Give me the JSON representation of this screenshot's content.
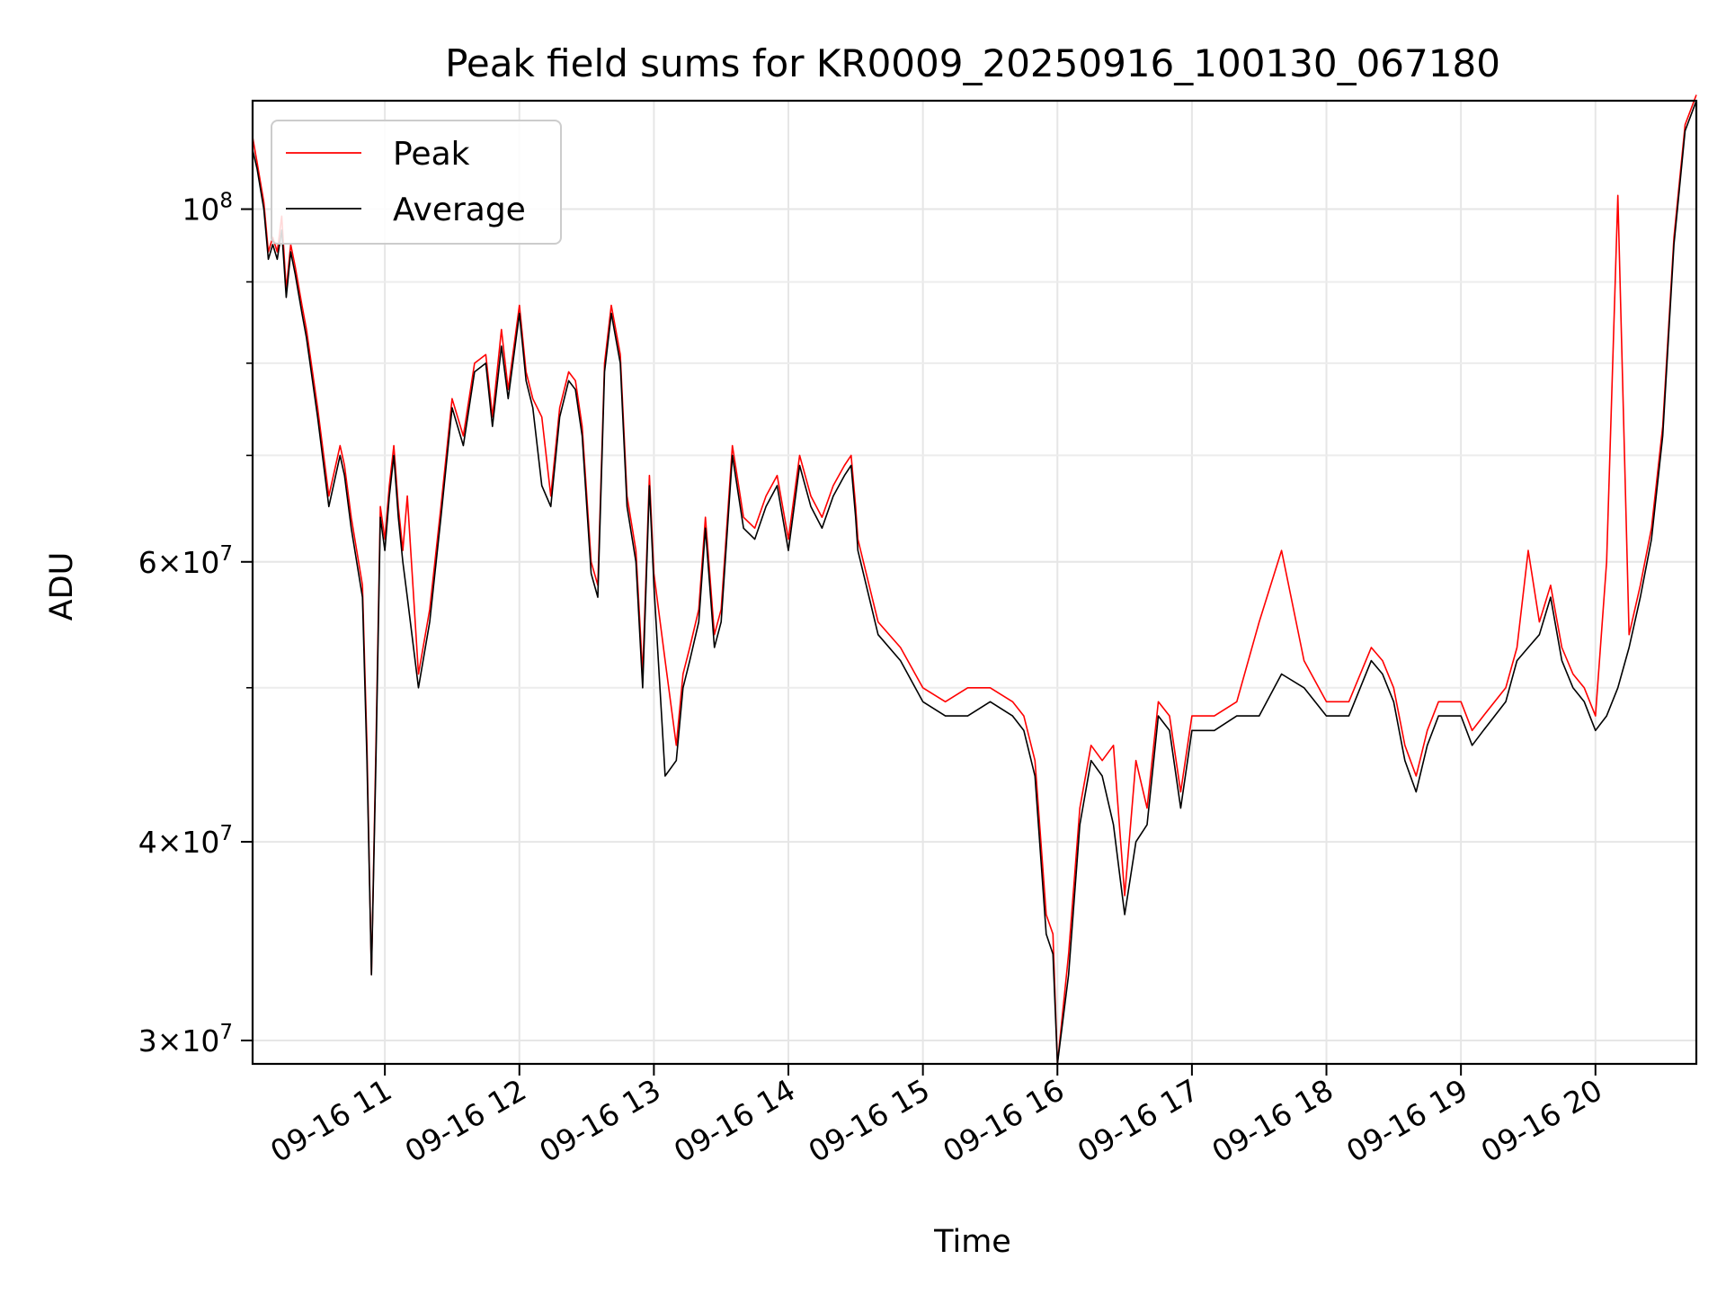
{
  "chart_data": {
    "type": "line",
    "title": "Peak field sums for KR0009_20250916_100130_067180",
    "xlabel": "Time",
    "ylabel": "ADU",
    "xscale": "time",
    "yscale": "log",
    "xlim": [
      "2025-09-16 10:01",
      "2025-09-16 20:45"
    ],
    "ylim": [
      29000000,
      117000000
    ],
    "grid": true,
    "legend_position": "top-left",
    "x_ticks": [
      "09-16 11",
      "09-16 12",
      "09-16 13",
      "09-16 14",
      "09-16 15",
      "09-16 16",
      "09-16 17",
      "09-16 18",
      "09-16 19",
      "09-16 20"
    ],
    "y_major_ticks": [
      {
        "value": 30000000,
        "mantissa": "3",
        "exponent": "7"
      },
      {
        "value": 40000000,
        "mantissa": "4",
        "exponent": "7"
      },
      {
        "value": 60000000,
        "mantissa": "6",
        "exponent": "7"
      },
      {
        "value": 100000000,
        "mantissa": "",
        "exponent": "8"
      }
    ],
    "y_minor_ticks": [
      50000000,
      70000000,
      80000000,
      90000000
    ],
    "series": [
      {
        "name": "Average",
        "color": "#000000",
        "x": [
          "2025-09-16 10:01",
          "2025-09-16 10:03",
          "2025-09-16 10:06",
          "2025-09-16 10:08",
          "2025-09-16 10:10",
          "2025-09-16 10:12",
          "2025-09-16 10:14",
          "2025-09-16 10:16",
          "2025-09-16 10:18",
          "2025-09-16 10:20",
          "2025-09-16 10:23",
          "2025-09-16 10:25",
          "2025-09-16 10:30",
          "2025-09-16 10:35",
          "2025-09-16 10:40",
          "2025-09-16 10:42",
          "2025-09-16 10:45",
          "2025-09-16 10:50",
          "2025-09-16 10:52",
          "2025-09-16 10:54",
          "2025-09-16 10:56",
          "2025-09-16 10:58",
          "2025-09-16 11:00",
          "2025-09-16 11:02",
          "2025-09-16 11:04",
          "2025-09-16 11:06",
          "2025-09-16 11:08",
          "2025-09-16 11:10",
          "2025-09-16 11:15",
          "2025-09-16 11:20",
          "2025-09-16 11:25",
          "2025-09-16 11:30",
          "2025-09-16 11:35",
          "2025-09-16 11:40",
          "2025-09-16 11:45",
          "2025-09-16 11:48",
          "2025-09-16 11:52",
          "2025-09-16 11:55",
          "2025-09-16 12:00",
          "2025-09-16 12:03",
          "2025-09-16 12:06",
          "2025-09-16 12:10",
          "2025-09-16 12:14",
          "2025-09-16 12:18",
          "2025-09-16 12:22",
          "2025-09-16 12:25",
          "2025-09-16 12:28",
          "2025-09-16 12:32",
          "2025-09-16 12:35",
          "2025-09-16 12:38",
          "2025-09-16 12:41",
          "2025-09-16 12:45",
          "2025-09-16 12:48",
          "2025-09-16 12:52",
          "2025-09-16 12:55",
          "2025-09-16 12:58",
          "2025-09-16 13:00",
          "2025-09-16 13:05",
          "2025-09-16 13:10",
          "2025-09-16 13:13",
          "2025-09-16 13:16",
          "2025-09-16 13:20",
          "2025-09-16 13:23",
          "2025-09-16 13:27",
          "2025-09-16 13:30",
          "2025-09-16 13:35",
          "2025-09-16 13:40",
          "2025-09-16 13:45",
          "2025-09-16 13:50",
          "2025-09-16 13:55",
          "2025-09-16 14:00",
          "2025-09-16 14:05",
          "2025-09-16 14:10",
          "2025-09-16 14:15",
          "2025-09-16 14:20",
          "2025-09-16 14:25",
          "2025-09-16 14:28",
          "2025-09-16 14:30",
          "2025-09-16 14:31",
          "2025-09-16 14:40",
          "2025-09-16 14:50",
          "2025-09-16 15:00",
          "2025-09-16 15:10",
          "2025-09-16 15:20",
          "2025-09-16 15:30",
          "2025-09-16 15:40",
          "2025-09-16 15:45",
          "2025-09-16 15:50",
          "2025-09-16 15:55",
          "2025-09-16 15:58",
          "2025-09-16 16:00",
          "2025-09-16 16:05",
          "2025-09-16 16:10",
          "2025-09-16 16:15",
          "2025-09-16 16:20",
          "2025-09-16 16:25",
          "2025-09-16 16:30",
          "2025-09-16 16:35",
          "2025-09-16 16:40",
          "2025-09-16 16:45",
          "2025-09-16 16:50",
          "2025-09-16 16:55",
          "2025-09-16 17:00",
          "2025-09-16 17:10",
          "2025-09-16 17:20",
          "2025-09-16 17:30",
          "2025-09-16 17:40",
          "2025-09-16 17:50",
          "2025-09-16 18:00",
          "2025-09-16 18:10",
          "2025-09-16 18:20",
          "2025-09-16 18:25",
          "2025-09-16 18:30",
          "2025-09-16 18:35",
          "2025-09-16 18:40",
          "2025-09-16 18:45",
          "2025-09-16 18:50",
          "2025-09-16 19:00",
          "2025-09-16 19:05",
          "2025-09-16 19:10",
          "2025-09-16 19:20",
          "2025-09-16 19:25",
          "2025-09-16 19:30",
          "2025-09-16 19:35",
          "2025-09-16 19:40",
          "2025-09-16 19:45",
          "2025-09-16 19:50",
          "2025-09-16 19:55",
          "2025-09-16 20:00",
          "2025-09-16 20:05",
          "2025-09-16 20:10",
          "2025-09-16 20:15",
          "2025-09-16 20:20",
          "2025-09-16 20:25",
          "2025-09-16 20:30",
          "2025-09-16 20:35",
          "2025-09-16 20:40",
          "2025-09-16 20:45"
        ],
        "y": [
          109000000,
          106000000,
          100000000,
          93000000,
          95000000,
          93000000,
          97000000,
          88000000,
          94000000,
          91000000,
          86000000,
          83000000,
          74000000,
          65000000,
          70000000,
          68000000,
          63000000,
          57000000,
          45000000,
          33000000,
          45000000,
          64000000,
          61000000,
          66000000,
          70000000,
          64000000,
          60000000,
          57000000,
          50000000,
          55000000,
          64000000,
          75000000,
          71000000,
          79000000,
          80000000,
          73000000,
          82000000,
          76000000,
          86000000,
          78000000,
          75000000,
          67000000,
          65000000,
          74000000,
          78000000,
          77000000,
          72000000,
          59000000,
          57000000,
          79000000,
          86000000,
          80000000,
          65000000,
          60000000,
          50000000,
          67000000,
          58000000,
          44000000,
          45000000,
          50000000,
          52000000,
          55000000,
          63000000,
          53000000,
          55000000,
          70000000,
          63000000,
          62000000,
          65000000,
          67000000,
          61000000,
          69000000,
          65000000,
          63000000,
          66000000,
          68000000,
          69000000,
          64000000,
          61000000,
          54000000,
          52000000,
          49000000,
          48000000,
          48000000,
          49000000,
          48000000,
          47000000,
          44000000,
          35000000,
          34000000,
          29000000,
          33000000,
          41000000,
          45000000,
          44000000,
          41000000,
          36000000,
          40000000,
          41000000,
          48000000,
          47000000,
          42000000,
          47000000,
          47000000,
          48000000,
          48000000,
          51000000,
          50000000,
          48000000,
          48000000,
          52000000,
          51000000,
          49000000,
          45000000,
          43000000,
          46000000,
          48000000,
          48000000,
          46000000,
          47000000,
          49000000,
          52000000,
          53000000,
          54000000,
          57000000,
          52000000,
          50000000,
          49000000,
          47000000,
          48000000,
          50000000,
          53000000,
          57000000,
          62000000,
          72000000,
          95000000,
          112000000,
          117000000
        ]
      },
      {
        "name": "Peak",
        "color": "#ff0000",
        "x": [
          "2025-09-16 10:01",
          "2025-09-16 10:03",
          "2025-09-16 10:06",
          "2025-09-16 10:08",
          "2025-09-16 10:10",
          "2025-09-16 10:12",
          "2025-09-16 10:14",
          "2025-09-16 10:16",
          "2025-09-16 10:18",
          "2025-09-16 10:20",
          "2025-09-16 10:23",
          "2025-09-16 10:25",
          "2025-09-16 10:30",
          "2025-09-16 10:35",
          "2025-09-16 10:40",
          "2025-09-16 10:42",
          "2025-09-16 10:45",
          "2025-09-16 10:50",
          "2025-09-16 10:52",
          "2025-09-16 10:54",
          "2025-09-16 10:56",
          "2025-09-16 10:58",
          "2025-09-16 11:00",
          "2025-09-16 11:02",
          "2025-09-16 11:04",
          "2025-09-16 11:06",
          "2025-09-16 11:08",
          "2025-09-16 11:10",
          "2025-09-16 11:15",
          "2025-09-16 11:20",
          "2025-09-16 11:25",
          "2025-09-16 11:30",
          "2025-09-16 11:35",
          "2025-09-16 11:40",
          "2025-09-16 11:45",
          "2025-09-16 11:48",
          "2025-09-16 11:52",
          "2025-09-16 11:55",
          "2025-09-16 12:00",
          "2025-09-16 12:03",
          "2025-09-16 12:06",
          "2025-09-16 12:10",
          "2025-09-16 12:14",
          "2025-09-16 12:18",
          "2025-09-16 12:22",
          "2025-09-16 12:25",
          "2025-09-16 12:28",
          "2025-09-16 12:32",
          "2025-09-16 12:35",
          "2025-09-16 12:38",
          "2025-09-16 12:41",
          "2025-09-16 12:45",
          "2025-09-16 12:48",
          "2025-09-16 12:52",
          "2025-09-16 12:55",
          "2025-09-16 12:58",
          "2025-09-16 13:00",
          "2025-09-16 13:05",
          "2025-09-16 13:10",
          "2025-09-16 13:13",
          "2025-09-16 13:16",
          "2025-09-16 13:20",
          "2025-09-16 13:23",
          "2025-09-16 13:27",
          "2025-09-16 13:30",
          "2025-09-16 13:35",
          "2025-09-16 13:40",
          "2025-09-16 13:45",
          "2025-09-16 13:50",
          "2025-09-16 13:55",
          "2025-09-16 14:00",
          "2025-09-16 14:05",
          "2025-09-16 14:10",
          "2025-09-16 14:15",
          "2025-09-16 14:20",
          "2025-09-16 14:25",
          "2025-09-16 14:28",
          "2025-09-16 14:30",
          "2025-09-16 14:31",
          "2025-09-16 14:40",
          "2025-09-16 14:50",
          "2025-09-16 15:00",
          "2025-09-16 15:10",
          "2025-09-16 15:20",
          "2025-09-16 15:30",
          "2025-09-16 15:40",
          "2025-09-16 15:45",
          "2025-09-16 15:50",
          "2025-09-16 15:55",
          "2025-09-16 15:58",
          "2025-09-16 16:00",
          "2025-09-16 16:05",
          "2025-09-16 16:10",
          "2025-09-16 16:15",
          "2025-09-16 16:20",
          "2025-09-16 16:25",
          "2025-09-16 16:30",
          "2025-09-16 16:35",
          "2025-09-16 16:40",
          "2025-09-16 16:45",
          "2025-09-16 16:50",
          "2025-09-16 16:55",
          "2025-09-16 17:00",
          "2025-09-16 17:10",
          "2025-09-16 17:20",
          "2025-09-16 17:30",
          "2025-09-16 17:40",
          "2025-09-16 17:50",
          "2025-09-16 18:00",
          "2025-09-16 18:10",
          "2025-09-16 18:20",
          "2025-09-16 18:25",
          "2025-09-16 18:30",
          "2025-09-16 18:35",
          "2025-09-16 18:40",
          "2025-09-16 18:45",
          "2025-09-16 18:50",
          "2025-09-16 19:00",
          "2025-09-16 19:05",
          "2025-09-16 19:10",
          "2025-09-16 19:20",
          "2025-09-16 19:25",
          "2025-09-16 19:30",
          "2025-09-16 19:35",
          "2025-09-16 19:40",
          "2025-09-16 19:45",
          "2025-09-16 19:50",
          "2025-09-16 19:55",
          "2025-09-16 20:00",
          "2025-09-16 20:05",
          "2025-09-16 20:10",
          "2025-09-16 20:15",
          "2025-09-16 20:20",
          "2025-09-16 20:25",
          "2025-09-16 20:30",
          "2025-09-16 20:35",
          "2025-09-16 20:40",
          "2025-09-16 20:45"
        ],
        "y": [
          111000000,
          107000000,
          101000000,
          94000000,
          96000000,
          94000000,
          99000000,
          89000000,
          95000000,
          92000000,
          87000000,
          84000000,
          75000000,
          66000000,
          71000000,
          69000000,
          64000000,
          58000000,
          46000000,
          33000000,
          46000000,
          65000000,
          62000000,
          67000000,
          71000000,
          65000000,
          61000000,
          66000000,
          51000000,
          56000000,
          65000000,
          76000000,
          72000000,
          80000000,
          81000000,
          74000000,
          84000000,
          77000000,
          87000000,
          79000000,
          76000000,
          74000000,
          66000000,
          75000000,
          79000000,
          78000000,
          73000000,
          60000000,
          58000000,
          80000000,
          87000000,
          81000000,
          66000000,
          61000000,
          51000000,
          68000000,
          59000000,
          52000000,
          46000000,
          51000000,
          53000000,
          56000000,
          64000000,
          54000000,
          56000000,
          71000000,
          64000000,
          63000000,
          66000000,
          68000000,
          62000000,
          70000000,
          66000000,
          64000000,
          67000000,
          69000000,
          70000000,
          65000000,
          62000000,
          55000000,
          53000000,
          50000000,
          49000000,
          50000000,
          50000000,
          49000000,
          48000000,
          45000000,
          36000000,
          35000000,
          29000000,
          34000000,
          42000000,
          46000000,
          45000000,
          46000000,
          37000000,
          45000000,
          42000000,
          49000000,
          48000000,
          43000000,
          48000000,
          48000000,
          49000000,
          55000000,
          61000000,
          52000000,
          49000000,
          49000000,
          53000000,
          52000000,
          50000000,
          46000000,
          44000000,
          47000000,
          49000000,
          49000000,
          47000000,
          48000000,
          50000000,
          53000000,
          61000000,
          55000000,
          58000000,
          53000000,
          51000000,
          50000000,
          48000000,
          60000000,
          102000000,
          54000000,
          58000000,
          63000000,
          73000000,
          96000000,
          113000000,
          118000000
        ]
      }
    ]
  }
}
